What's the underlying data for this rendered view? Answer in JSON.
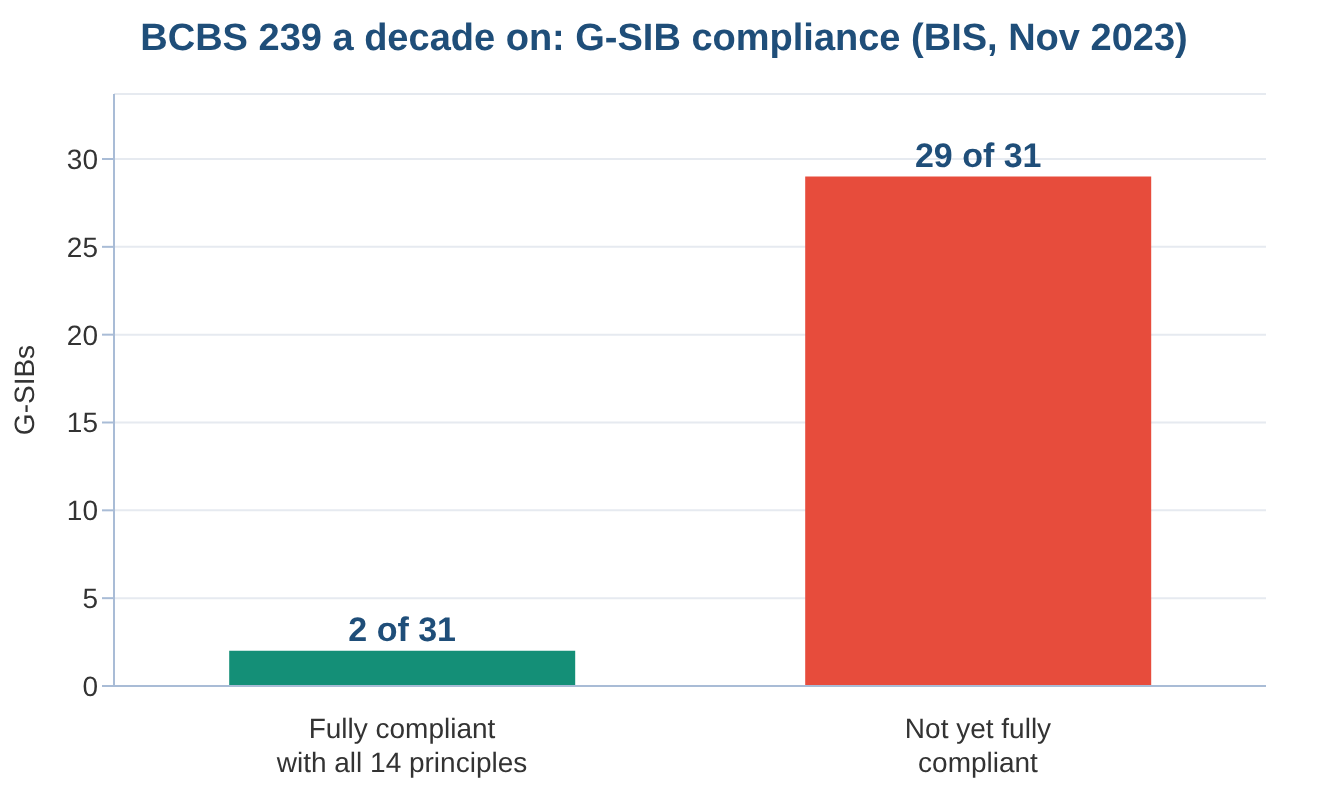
{
  "chart_data": {
    "type": "bar",
    "title": "BCBS 239 a decade on: G-SIB compliance (BIS, Nov 2023)",
    "ylabel": "G-SIBs",
    "categories": [
      "Fully compliant\nwith all 14 principles",
      "Not yet fully\ncompliant"
    ],
    "values": [
      2,
      29
    ],
    "colors": [
      "#148f77",
      "#e74c3c"
    ],
    "value_labels": [
      "2 of 31",
      "29 of 31"
    ],
    "ylim": [
      0,
      33.7
    ],
    "yticks": [
      0,
      5,
      10,
      15,
      20,
      25,
      30
    ],
    "grid": "y"
  }
}
